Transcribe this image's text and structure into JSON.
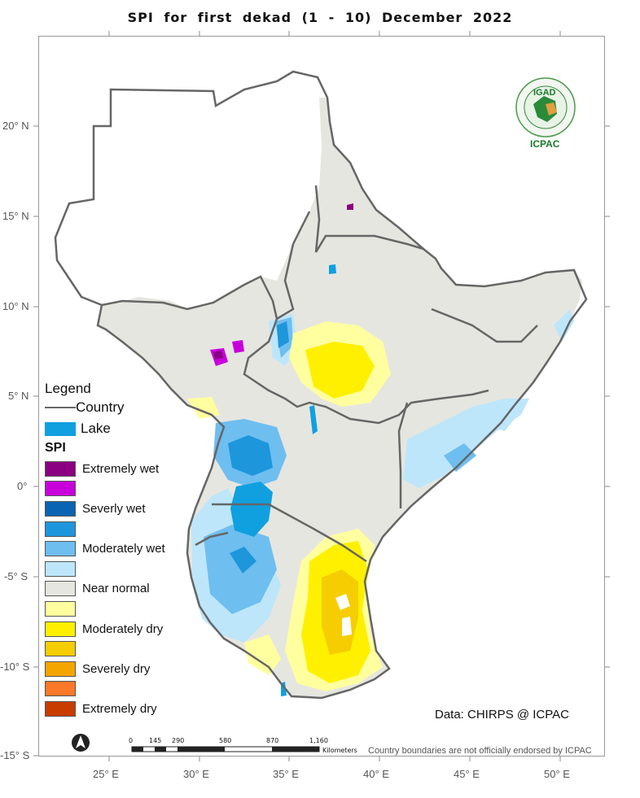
{
  "title": "SPI   for    first  dekad (1 - 10)  December 2022",
  "lat_labels": [
    "20° N",
    "15° N",
    "10° N",
    "5° N",
    "0°",
    "-5° S",
    "-10° S",
    "-15° S"
  ],
  "lon_labels": [
    "25° E",
    "30° E",
    "35° E",
    "40° E",
    "45° E",
    "50° E"
  ],
  "legend": {
    "title": "Legend",
    "country_label": "Country",
    "lake_label": "Lake",
    "spi_title": "SPI",
    "classes": [
      {
        "label": "Extremely wet",
        "color": "#8b0082"
      },
      {
        "label": "",
        "color": "#c800dc"
      },
      {
        "label": "Severly wet",
        "color": "#0a64b4"
      },
      {
        "label": "",
        "color": "#1e96dc"
      },
      {
        "label": "Moderately wet",
        "color": "#6ebef0"
      },
      {
        "label": "",
        "color": "#bee6fa"
      },
      {
        "label": "Near normal",
        "color": "#e6e6e0"
      },
      {
        "label": "",
        "color": "#ffffa0"
      },
      {
        "label": "Moderately dry",
        "color": "#fff000"
      },
      {
        "label": "",
        "color": "#f5cd00"
      },
      {
        "label": "Severely dry",
        "color": "#f5a500"
      },
      {
        "label": "",
        "color": "#fa7828"
      },
      {
        "label": "Extremely dry",
        "color": "#c83c00"
      }
    ],
    "lake_color": "#10a0e0",
    "country_color": "#666666"
  },
  "scale_bar": {
    "ticks": [
      "0",
      "145",
      "290",
      "580",
      "870",
      "1,160"
    ],
    "unit": "Kilometers"
  },
  "credit": "Data: CHIRPS @ ICPAC",
  "disclaimer": "Country boundaries are not officially endorsed by ICPAC",
  "logo": {
    "top_text": "IGAD",
    "bottom_text": "ICPAC"
  }
}
